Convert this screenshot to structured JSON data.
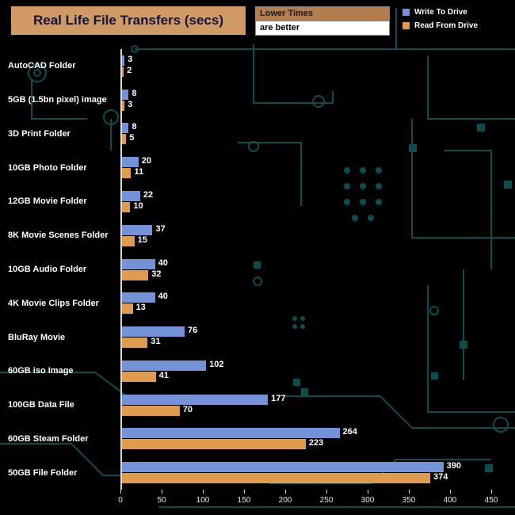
{
  "title": "Real Life File Transfers (secs)",
  "note": {
    "line1": "Lower Times",
    "line2": "are better"
  },
  "colors": {
    "write": "#7392d7",
    "read": "#e09c4e",
    "title_box": "#cf9a63",
    "note_box": "#b57d4e",
    "circuit": "#0d4d50",
    "axis": "#d8d8d8"
  },
  "chart_data": {
    "type": "bar",
    "orientation": "horizontal",
    "title": "Real Life File Transfers (secs)",
    "xlabel": "",
    "ylabel": "",
    "xlim": [
      0,
      450
    ],
    "xticks": [
      0,
      50,
      100,
      150,
      200,
      250,
      300,
      350,
      400,
      450
    ],
    "grid": false,
    "legend_position": "top-right",
    "categories": [
      "AutoCAD Folder",
      "5GB (1.5bn pixel) image",
      "3D Print Folder",
      "10GB Photo Folder",
      "12GB Movie Folder",
      "8K Movie Scenes Folder",
      "10GB Audio Folder",
      "4K Movie Clips Folder",
      "BluRay Movie",
      "60GB iso Image",
      "100GB Data File",
      "60GB Steam Folder",
      "50GB File Folder"
    ],
    "series": [
      {
        "name": "Write To  Drive",
        "color": "#7392d7",
        "values": [
          3,
          8,
          8,
          20,
          22,
          37,
          40,
          40,
          76,
          102,
          177,
          264,
          390
        ]
      },
      {
        "name": "Read From  Drive",
        "color": "#e09c4e",
        "values": [
          2,
          3,
          5,
          11,
          10,
          15,
          32,
          13,
          31,
          41,
          70,
          223,
          374
        ]
      }
    ]
  }
}
